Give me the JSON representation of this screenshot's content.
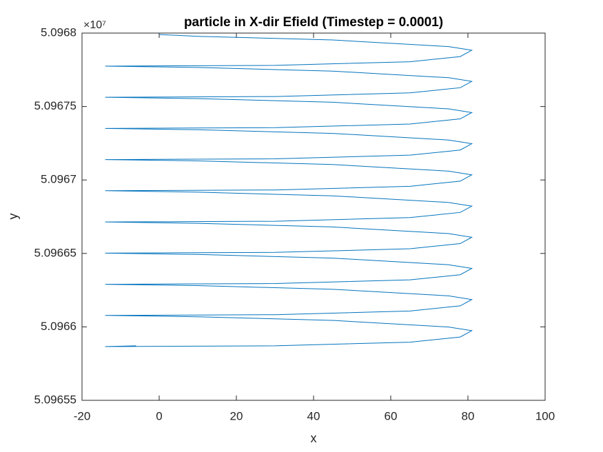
{
  "chart_data": {
    "type": "line",
    "title": "particle in X-dir Efield (Timestep = 0.0001)",
    "xlabel": "x",
    "ylabel": "y",
    "y_multiplier": "×10⁷",
    "color": "#0072bd",
    "grid": false,
    "xlim": [
      -20,
      100
    ],
    "xticks": [
      -20,
      0,
      20,
      40,
      60,
      80,
      100
    ],
    "ylim": [
      5.09655,
      5.0968
    ],
    "yticks": [
      5.09655,
      5.0966,
      5.09665,
      5.0967,
      5.09675,
      5.0968
    ],
    "x": [
      -6,
      -14,
      30,
      65,
      78,
      81,
      75,
      45,
      10,
      -14,
      30,
      65,
      78,
      81,
      75,
      45,
      10,
      -14,
      30,
      65,
      78,
      81,
      75,
      45,
      10,
      -14,
      30,
      65,
      78,
      81,
      75,
      45,
      10,
      -14,
      30,
      65,
      78,
      81,
      75,
      45,
      10,
      -14,
      30,
      65,
      78,
      81,
      75,
      45,
      10,
      -14,
      30,
      65,
      78,
      81,
      75,
      45,
      10,
      -14,
      30,
      65,
      78,
      81,
      75,
      45,
      10,
      -14,
      30,
      65,
      78,
      81,
      75,
      45,
      10,
      -14,
      30,
      65,
      78,
      81,
      75,
      45,
      10,
      0
    ],
    "values": [
      5.0965871,
      5.0965866,
      5.0965871,
      5.0965896,
      5.0965931,
      5.0965974,
      5.0965999,
      5.0966044,
      5.0966069,
      5.0966078,
      5.0966083,
      5.0966108,
      5.0966143,
      5.0966186,
      5.0966211,
      5.0966256,
      5.0966281,
      5.096629,
      5.0966295,
      5.096632,
      5.0966355,
      5.0966398,
      5.0966423,
      5.0966468,
      5.0966493,
      5.0966502,
      5.0966507,
      5.0966532,
      5.0966567,
      5.096661,
      5.0966635,
      5.096668,
      5.0966705,
      5.0966714,
      5.0966719,
      5.0966744,
      5.0966779,
      5.0966822,
      5.0966847,
      5.0966892,
      5.0966917,
      5.0966927,
      5.0966932,
      5.0966957,
      5.0966992,
      5.0967035,
      5.096706,
      5.0967105,
      5.096713,
      5.0967139,
      5.0967144,
      5.0967169,
      5.0967204,
      5.0967247,
      5.0967272,
      5.0967317,
      5.0967342,
      5.0967351,
      5.0967356,
      5.0967381,
      5.0967416,
      5.0967459,
      5.0967484,
      5.0967529,
      5.0967554,
      5.0967563,
      5.0967568,
      5.0967593,
      5.0967628,
      5.0967671,
      5.0967696,
      5.0967741,
      5.0967766,
      5.0967775,
      5.096778,
      5.0967805,
      5.096784,
      5.0967883,
      5.0967908,
      5.0967953,
      5.0967978,
      5.096799
    ]
  }
}
